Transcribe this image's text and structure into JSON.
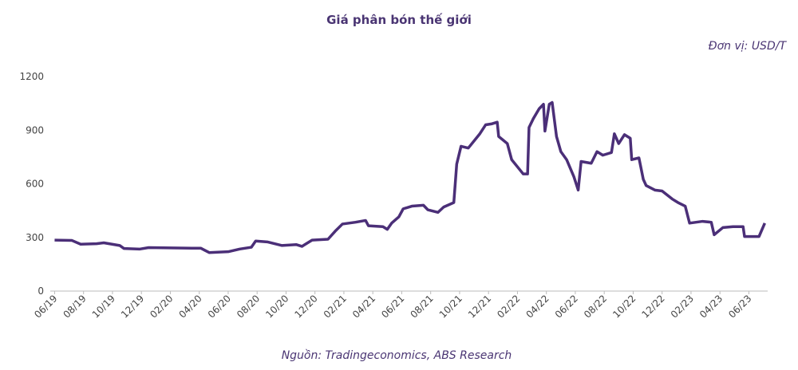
{
  "chart_data": {
    "type": "line",
    "title": "Giá phân bón thế giới",
    "unit_label": "Đơn vị: USD/T",
    "source": "Nguồn: Tradingeconomics, ABS Research",
    "x": [
      0,
      1.2,
      1.8,
      2.9,
      3.4,
      4.5,
      4.8,
      5.9,
      6.5,
      9.5,
      10.1,
      10.7,
      12.0,
      12.8,
      13.6,
      13.9,
      14.7,
      15.7,
      16.7,
      17.1,
      17.8,
      18.9,
      19.4,
      19.9,
      20.8,
      21.5,
      21.7,
      22.7,
      23.0,
      23.3,
      23.8,
      24.1,
      24.7,
      25.5,
      25.8,
      26.5,
      26.9,
      27.6,
      27.8,
      28.1,
      28.6,
      29.4,
      29.8,
      30.2,
      30.6,
      30.7,
      31.3,
      31.6,
      32.1,
      32.4,
      32.7,
      32.8,
      33.1,
      33.5,
      33.8,
      33.9,
      34.2,
      34.4,
      34.7,
      35.0,
      35.4,
      35.9,
      36.2,
      36.4,
      37.1,
      37.5,
      37.9,
      38.5,
      38.7,
      39.0,
      39.4,
      39.8,
      39.9,
      40.4,
      40.7,
      40.9,
      41.5,
      42.0,
      42.7,
      43.1,
      43.6,
      43.9,
      44.8,
      45.4,
      45.6,
      46.2,
      46.9,
      47.6,
      47.7,
      48.7,
      49.1
    ],
    "series": [
      {
        "name": "Giá phân bón",
        "color": "#4b2f78",
        "values": [
          285,
          283,
          262,
          265,
          270,
          255,
          238,
          235,
          243,
          240,
          240,
          215,
          220,
          235,
          245,
          280,
          275,
          255,
          260,
          250,
          285,
          290,
          335,
          375,
          385,
          395,
          365,
          360,
          345,
          380,
          415,
          460,
          475,
          480,
          455,
          440,
          470,
          495,
          710,
          810,
          800,
          880,
          930,
          935,
          945,
          865,
          825,
          735,
          685,
          655,
          655,
          915,
          965,
          1020,
          1045,
          895,
          1045,
          1055,
          865,
          780,
          735,
          640,
          565,
          725,
          715,
          780,
          760,
          775,
          880,
          825,
          875,
          855,
          735,
          745,
          625,
          590,
          565,
          560,
          515,
          495,
          475,
          380,
          390,
          385,
          315,
          355,
          360,
          360,
          305,
          305,
          380
        ]
      }
    ],
    "xlim": [
      -0.3,
      49.3
    ],
    "xticks": [
      {
        "value": 0,
        "label": "06/19"
      },
      {
        "value": 2,
        "label": "08/19"
      },
      {
        "value": 4,
        "label": "10/19"
      },
      {
        "value": 6,
        "label": "12/19"
      },
      {
        "value": 8,
        "label": "02/20"
      },
      {
        "value": 10,
        "label": "04/20"
      },
      {
        "value": 12,
        "label": "06/20"
      },
      {
        "value": 14,
        "label": "08/20"
      },
      {
        "value": 16,
        "label": "10/20"
      },
      {
        "value": 18,
        "label": "12/20"
      },
      {
        "value": 20,
        "label": "02/21"
      },
      {
        "value": 22,
        "label": "04/21"
      },
      {
        "value": 24,
        "label": "06/21"
      },
      {
        "value": 26,
        "label": "08/21"
      },
      {
        "value": 28,
        "label": "10/21"
      },
      {
        "value": 30,
        "label": "12/21"
      },
      {
        "value": 32,
        "label": "02/22"
      },
      {
        "value": 34,
        "label": "04/22"
      },
      {
        "value": 36,
        "label": "06/22"
      },
      {
        "value": 38,
        "label": "08/22"
      },
      {
        "value": 40,
        "label": "10/22"
      },
      {
        "value": 42,
        "label": "12/22"
      },
      {
        "value": 44,
        "label": "02/23"
      },
      {
        "value": 46,
        "label": "04/23"
      },
      {
        "value": 48,
        "label": "06/23"
      }
    ],
    "ylim": [
      0,
      1200
    ],
    "yticks": [
      0,
      300,
      600,
      900,
      1200
    ],
    "grid": false
  }
}
